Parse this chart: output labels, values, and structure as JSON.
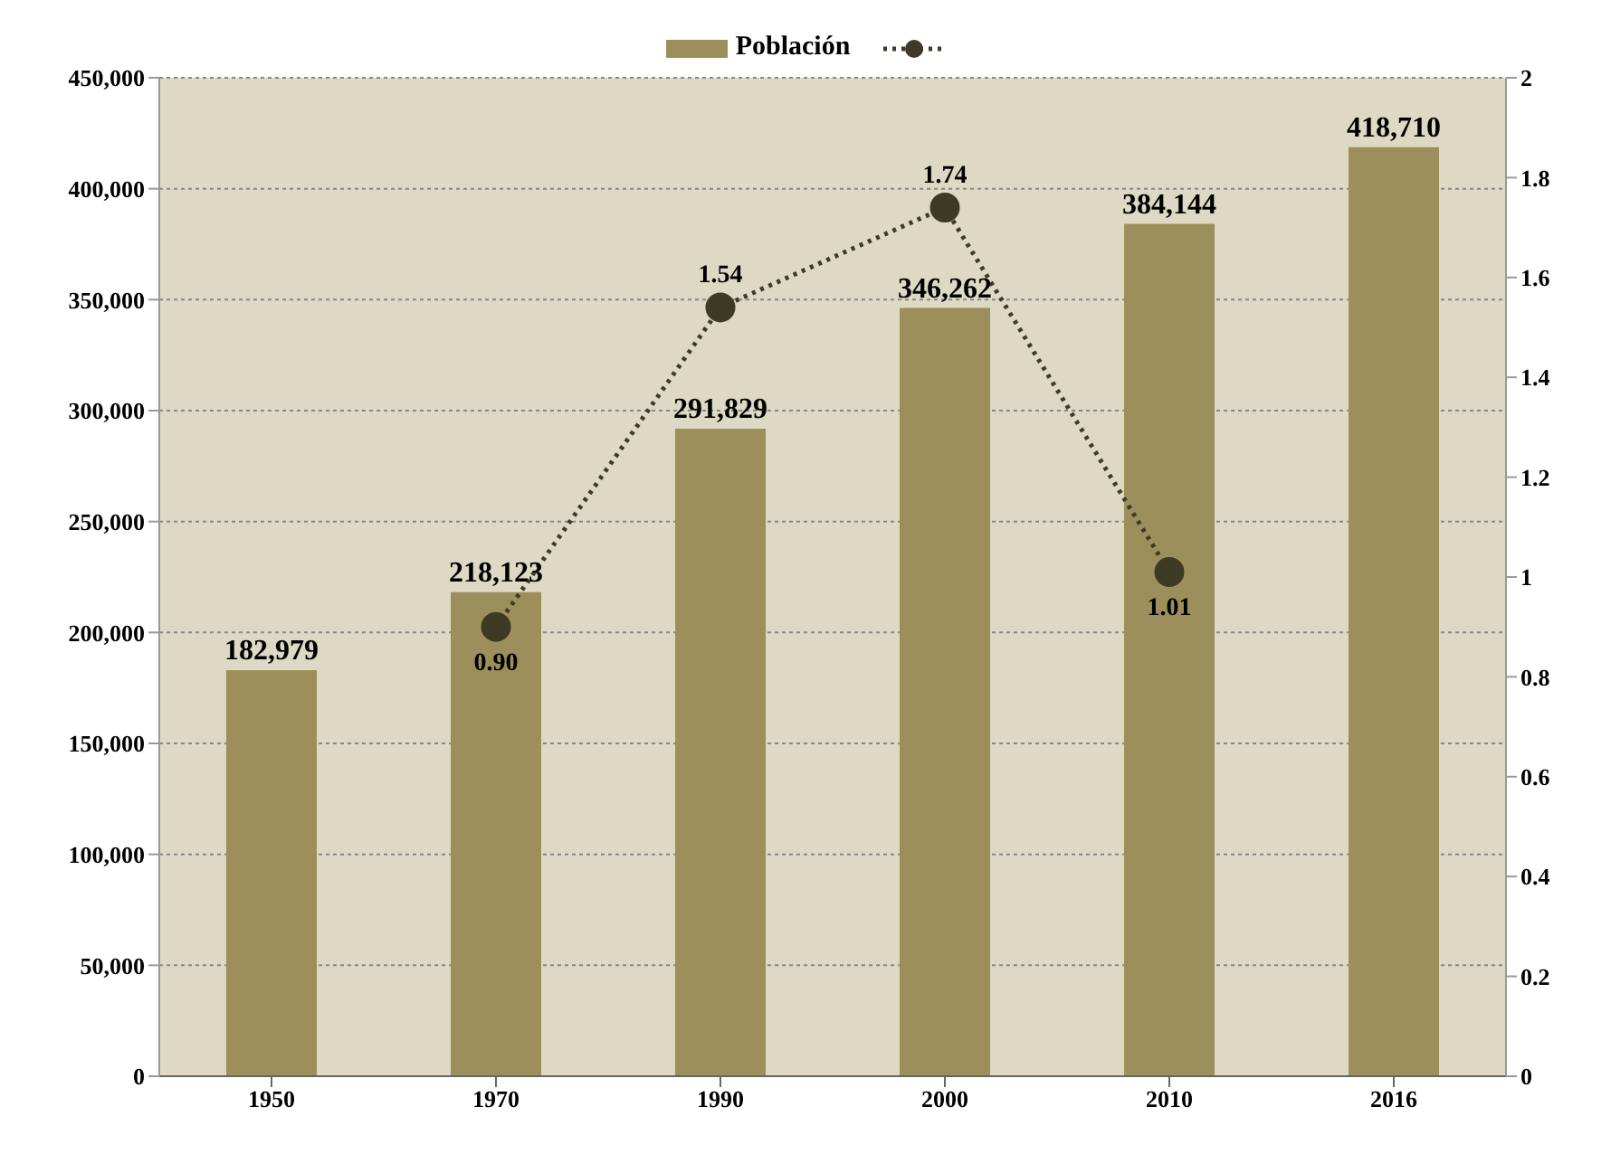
{
  "chart_data": {
    "type": "bar",
    "categories": [
      "1950",
      "1970",
      "1990",
      "2000",
      "2010",
      "2016"
    ],
    "series": [
      {
        "name": "Población",
        "color": "#9c8f5c",
        "values": [
          182979,
          218123,
          291829,
          346262,
          384144,
          418710
        ],
        "value_labels": [
          "182,979",
          "218,123",
          "291,829",
          "346,262",
          "384,144",
          "418,710"
        ]
      },
      {
        "type": "line",
        "axis": "y2",
        "color": "#3d3a26",
        "values": [
          null,
          0.9,
          1.54,
          1.74,
          1.01,
          null
        ],
        "value_labels": [
          null,
          "0.90",
          "1.54",
          "1.74",
          "1.01",
          null
        ],
        "marker": "circle",
        "line_style": "dotted"
      }
    ],
    "ylim": [
      0,
      450000
    ],
    "yticks": [
      {
        "value": 0,
        "label": "0"
      },
      {
        "value": 50000,
        "label": "50,000"
      },
      {
        "value": 100000,
        "label": "100,000"
      },
      {
        "value": 150000,
        "label": "150,000"
      },
      {
        "value": 200000,
        "label": "200,000"
      },
      {
        "value": 250000,
        "label": "250,000"
      },
      {
        "value": 300000,
        "label": "300,000"
      },
      {
        "value": 350000,
        "label": "350,000"
      },
      {
        "value": 400000,
        "label": "400,000"
      },
      {
        "value": 450000,
        "label": "450,000"
      }
    ],
    "y2lim": [
      0,
      2
    ],
    "y2ticks": [
      0,
      0.2,
      0.4,
      0.6,
      0.8,
      1,
      1.2,
      1.4,
      1.6,
      1.8,
      2
    ],
    "grid": "y",
    "legend": "top"
  }
}
